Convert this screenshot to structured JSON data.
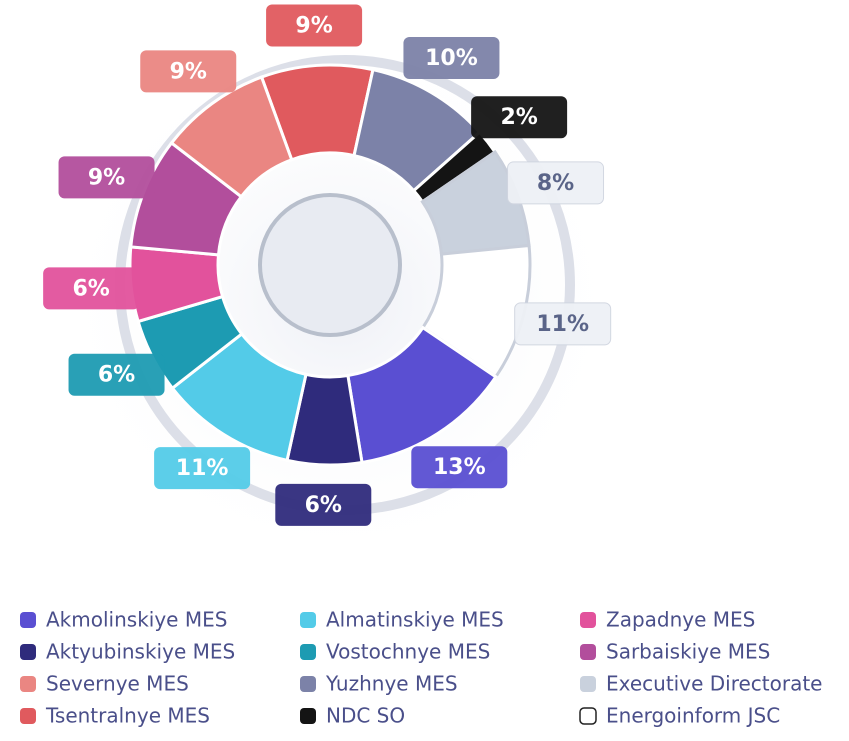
{
  "chart_data": {
    "type": "pie",
    "donut": true,
    "categories": [
      "Tsentralnye MES",
      "Yuzhnye MES",
      "NDC SO",
      "Executive Directorate",
      "Energoinform JSC",
      "Akmolinskiye MES",
      "Aktyubinskiye MES",
      "Almatinskiye MES",
      "Vostochnye MES",
      "Zapadnye MES",
      "Sarbaiskiye MES",
      "Severnye MES"
    ],
    "values": [
      9,
      10,
      2,
      8,
      11,
      13,
      6,
      11,
      6,
      6,
      9,
      9
    ],
    "value_labels": [
      "9%",
      "10%",
      "2%",
      "8%",
      "11%",
      "13%",
      "6%",
      "11%",
      "6%",
      "6%",
      "9%",
      "9%"
    ],
    "colors": [
      "#e05a5e",
      "#7c82a8",
      "#141414",
      "#c9d1dd",
      "#ffffff",
      "#5a4fd2",
      "#2f2b7c",
      "#53cbe8",
      "#1d9bb2",
      "#e2529c",
      "#b24e9c",
      "#ea8682"
    ]
  }
}
